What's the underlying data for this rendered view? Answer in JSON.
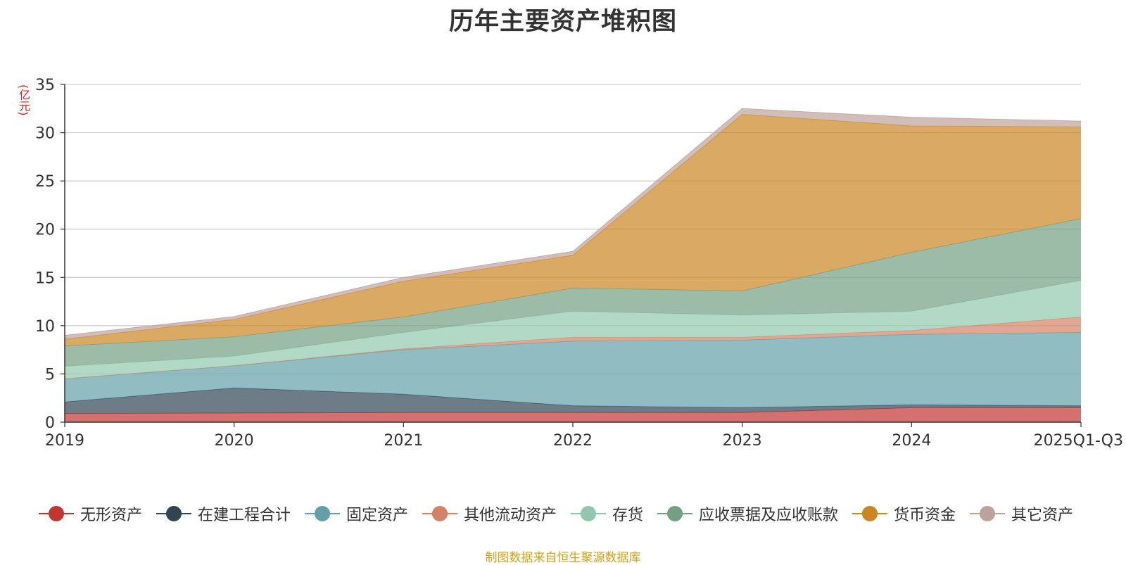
{
  "chart_data": {
    "type": "area",
    "stacked": true,
    "title": "历年主要资产堆积图",
    "ylabel": "(亿元)",
    "xlabel": "",
    "ylim": [
      0,
      35
    ],
    "yticks": [
      0,
      5,
      10,
      15,
      20,
      25,
      30,
      35
    ],
    "categories": [
      "2019",
      "2020",
      "2021",
      "2022",
      "2023",
      "2024",
      "2025Q1-Q3"
    ],
    "grid": true,
    "legend_position": "bottom",
    "series": [
      {
        "name": "无形资产",
        "color": "#c23531",
        "values": [
          0.9,
          0.95,
          1.0,
          1.0,
          1.0,
          1.5,
          1.5
        ]
      },
      {
        "name": "在建工程合计",
        "color": "#2f4554",
        "values": [
          1.2,
          2.6,
          1.9,
          0.7,
          0.5,
          0.3,
          0.2
        ]
      },
      {
        "name": "固定资产",
        "color": "#61a0a8",
        "values": [
          2.4,
          2.3,
          4.6,
          6.7,
          7.0,
          7.3,
          7.6
        ]
      },
      {
        "name": "其他流动资产",
        "color": "#d48265",
        "values": [
          0.0,
          0.0,
          0.1,
          0.4,
          0.3,
          0.4,
          1.6
        ]
      },
      {
        "name": "存货",
        "color": "#91c7ae",
        "values": [
          1.3,
          1.0,
          1.7,
          2.7,
          2.3,
          2.0,
          3.8
        ]
      },
      {
        "name": "应收票据及应收账款",
        "color": "#749f83",
        "values": [
          2.1,
          2.0,
          1.6,
          2.4,
          2.5,
          6.1,
          6.4
        ]
      },
      {
        "name": "货币资金",
        "color": "#ca8622",
        "values": [
          0.7,
          1.8,
          3.7,
          3.4,
          18.3,
          13.1,
          9.5
        ]
      },
      {
        "name": "其它资产",
        "color": "#bda29a",
        "values": [
          0.4,
          0.3,
          0.4,
          0.4,
          0.6,
          0.9,
          0.6
        ]
      }
    ]
  },
  "footer": {
    "source": "制图数据来自恒生聚源数据库"
  }
}
